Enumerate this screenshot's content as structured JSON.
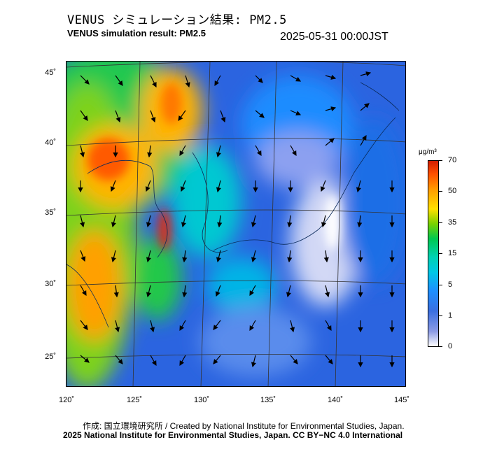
{
  "title_jp": "VENUS シミュレーション結果: PM2.5",
  "title_en": "VENUS simulation result: PM2.5",
  "timestamp": "2025-05-31 00:00JST",
  "lat_labels": [
    "45˚",
    "40˚",
    "35˚",
    "30˚",
    "25˚"
  ],
  "lon_labels": [
    "120˚",
    "125˚",
    "130˚",
    "135˚",
    "140˚",
    "145˚"
  ],
  "colorbar": {
    "unit": "μg/m³",
    "ticks": [
      "70",
      "50",
      "35",
      "15",
      "5",
      "1",
      "0"
    ]
  },
  "credit_line1": "作成: 国立環境研究所 / Created by National Institute for Environmental Studies, Japan.",
  "credit_line2": "2025 National Institute for Environmental Studies, Japan. CC BY−NC 4.0 International"
}
